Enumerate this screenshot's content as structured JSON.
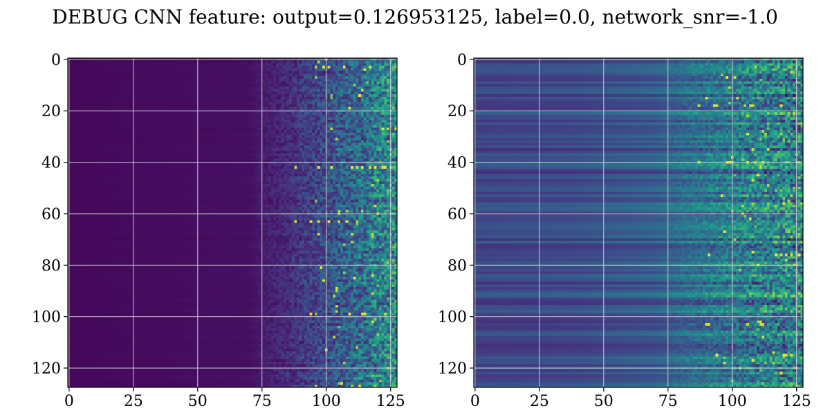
{
  "figure": {
    "title": "DEBUG CNN feature: output=0.126953125, label=0.0, network_snr=-1.0"
  },
  "chart_data": [
    {
      "type": "heatmap",
      "panel": "left",
      "matrix_size": [
        128,
        128
      ],
      "colormap": "viridis",
      "xlim": [
        -0.5,
        127.5
      ],
      "ylim": [
        127.5,
        -0.5
      ],
      "xticks": [
        0,
        25,
        50,
        75,
        100,
        125
      ],
      "yticks": [
        0,
        20,
        40,
        60,
        80,
        100,
        120
      ],
      "xtick_labels": [
        "0",
        "25",
        "50",
        "75",
        "100",
        "125"
      ],
      "ytick_labels": [
        "0",
        "20",
        "40",
        "60",
        "80",
        "100",
        "120"
      ],
      "grid": true,
      "value_profile": {
        "description_columns": [
          0,
          70,
          85,
          100,
          115,
          127
        ],
        "mean_level": [
          0.02,
          0.04,
          0.12,
          0.22,
          0.35,
          0.45
        ]
      },
      "hotspot_rows": [
        3,
        27,
        42,
        63,
        68,
        99
      ]
    },
    {
      "type": "heatmap",
      "panel": "right",
      "matrix_size": [
        128,
        128
      ],
      "colormap": "viridis",
      "xlim": [
        -0.5,
        127.5
      ],
      "ylim": [
        127.5,
        -0.5
      ],
      "xticks": [
        0,
        25,
        50,
        75,
        100,
        125
      ],
      "yticks": [
        0,
        20,
        40,
        60,
        80,
        100,
        120
      ],
      "xtick_labels": [
        "0",
        "25",
        "50",
        "75",
        "100",
        "125"
      ],
      "ytick_labels": [
        "0",
        "20",
        "40",
        "60",
        "80",
        "100",
        "120"
      ],
      "grid": true,
      "value_profile": {
        "description_columns": [
          0,
          40,
          70,
          85,
          100,
          127
        ],
        "mean_level": [
          0.22,
          0.24,
          0.3,
          0.38,
          0.42,
          0.45
        ]
      },
      "hotspot_rows": [
        15,
        18,
        40,
        76,
        103,
        115
      ]
    }
  ],
  "colors": {
    "viridis": [
      "#440154",
      "#482878",
      "#3e4989",
      "#31688e",
      "#26828e",
      "#1f9e89",
      "#35b779",
      "#6ece58",
      "#b5de2b",
      "#fde725"
    ],
    "grid": "#cfcfcf",
    "axes": "#000000"
  }
}
